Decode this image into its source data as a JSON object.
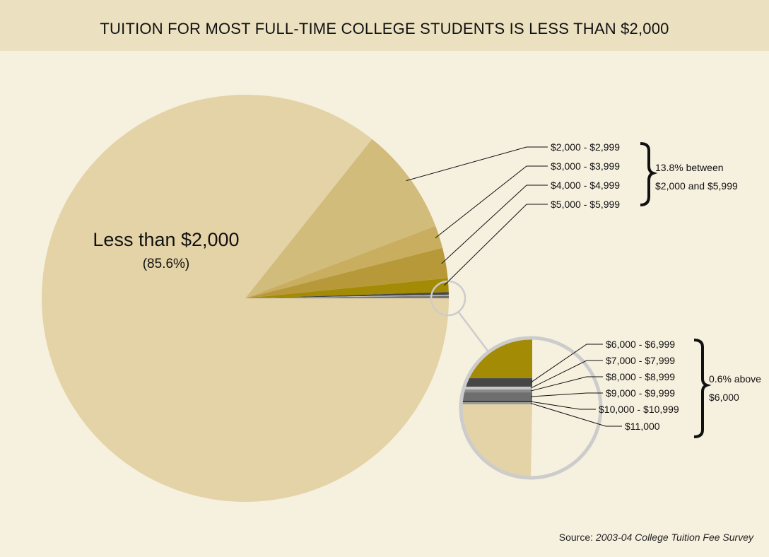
{
  "title": "TUITION FOR MOST FULL-TIME COLLEGE STUDENTS IS LESS THAN $2,000",
  "chart_data": {
    "type": "pie",
    "title": "TUITION FOR MOST FULL-TIME COLLEGE STUDENTS IS LESS THAN $2,000",
    "main_label": {
      "text": "Less than $2,000",
      "pct": "(85.6%)"
    },
    "slices": [
      {
        "label": "Less than $2,000",
        "value": 85.6,
        "color": "#e4d3a6"
      },
      {
        "label": "$2,000 - $2,999",
        "value": 8.5,
        "color": "#d2bc7b"
      },
      {
        "label": "$3,000 - $3,999",
        "value": 1.8,
        "color": "#c8ae5e"
      },
      {
        "label": "$4,000 - $4,999",
        "value": 2.4,
        "color": "#b8993a"
      },
      {
        "label": "$5,000 - $5,999",
        "value": 1.1,
        "color": "#a38b05"
      },
      {
        "label": "$6,000 - $6,999",
        "value": 0.2,
        "color": "#474747"
      },
      {
        "label": "$7,000 - $7,999",
        "value": 0.06,
        "color": "#c6c6c6"
      },
      {
        "label": "$8,000 - $8,999",
        "value": 0.05,
        "color": "#8a8a8a"
      },
      {
        "label": "$9,000 - $9,999",
        "value": 0.12,
        "color": "#6e6e6e"
      },
      {
        "label": "$10,000 - $10,999",
        "value": 0.02,
        "color": "#3a3a3a"
      },
      {
        "label": "$11,000",
        "value": 0.03,
        "color": "#9a9a9a"
      }
    ],
    "group_upper": {
      "line1": "13.8% between",
      "line2": "$2,000 and $5,999"
    },
    "group_lower": {
      "line1": "0.6% above",
      "line2": "$6,000"
    },
    "colors": {
      "background": "#f6f0df",
      "title_band": "#ebe1c0",
      "zoom_ring": "#cccccc"
    }
  },
  "source": {
    "label": "Source:",
    "title": "2003-04 College Tuition Fee Survey"
  }
}
